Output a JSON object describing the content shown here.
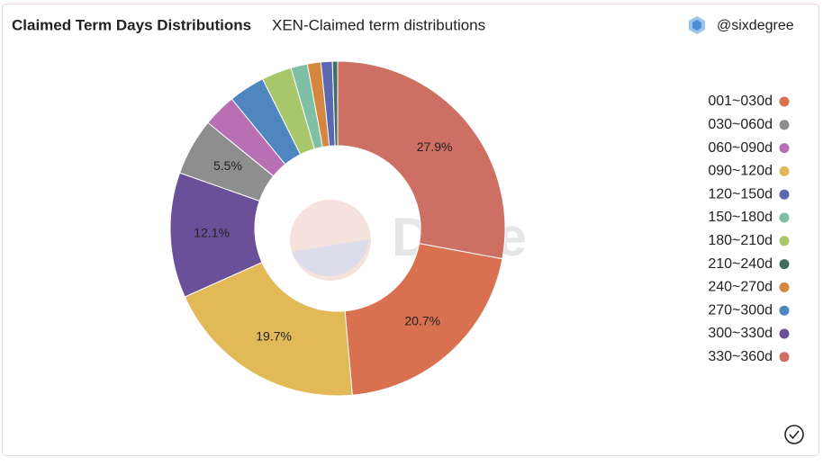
{
  "author": "@sixdegree",
  "watermark": "Dune",
  "chart_data": {
    "type": "donut",
    "title": "Claimed Term Days Distributions",
    "subtitle": "XEN-Claimed term distributions",
    "categories": [
      "330~360d",
      "001~030d",
      "090~120d",
      "300~330d",
      "030~060d",
      "060~090d",
      "270~300d",
      "180~210d",
      "150~180d",
      "240~270d",
      "120~150d",
      "210~240d"
    ],
    "values": [
      27.9,
      20.7,
      19.7,
      12.1,
      5.5,
      3.2,
      3.5,
      2.9,
      1.6,
      1.3,
      1.1,
      0.5
    ],
    "value_labels": [
      "27.9%",
      "20.7%",
      "19.7%",
      "12.1%",
      "5.5%",
      null,
      null,
      null,
      null,
      null,
      null,
      null
    ],
    "colors": [
      "#cd6f63",
      "#d9704f",
      "#e2b957",
      "#6a4f99",
      "#8e8e8e",
      "#b86fb3",
      "#4f86c0",
      "#a7c76a",
      "#7ebfa6",
      "#d5873f",
      "#5b67b0",
      "#3f6f5f"
    ],
    "legend": "right"
  }
}
